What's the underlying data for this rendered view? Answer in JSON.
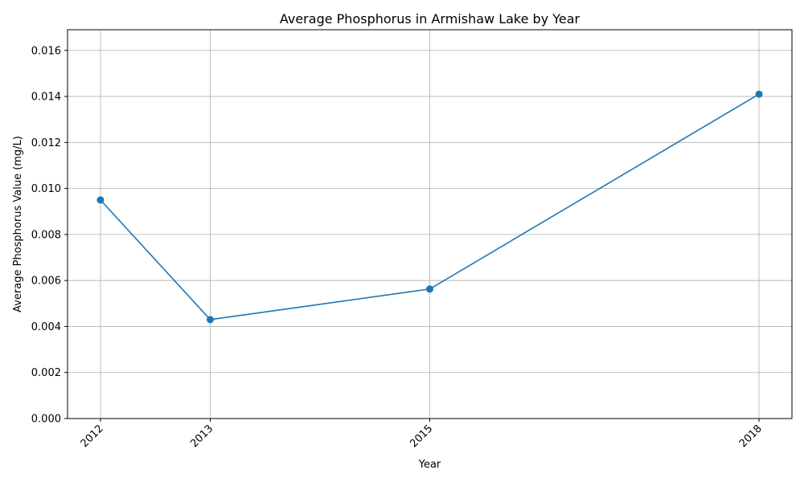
{
  "chart_data": {
    "type": "line",
    "title": "Average Phosphorus in Armishaw Lake by Year",
    "xlabel": "Year",
    "ylabel": "Average Phosphorus Value (mg/L)",
    "x": [
      2012,
      2013,
      2015,
      2018
    ],
    "x_tick_labels": [
      "2012",
      "2013",
      "2015",
      "2018"
    ],
    "series": [
      {
        "values": [
          0.0095,
          0.0043,
          0.00563,
          0.0141
        ],
        "color": "#1f77b4",
        "marker": "circle"
      }
    ],
    "xlim": [
      2011.7,
      2018.3
    ],
    "ylim": [
      0,
      0.0169
    ],
    "y_ticks": [
      0,
      0.002,
      0.004,
      0.006,
      0.008,
      0.01,
      0.012,
      0.014,
      0.016
    ],
    "y_tick_labels": [
      "0.000",
      "0.002",
      "0.004",
      "0.006",
      "0.008",
      "0.010",
      "0.012",
      "0.014",
      "0.016"
    ],
    "grid": true,
    "x_tick_rotation": 45,
    "colors": {
      "line": "#1f77b4",
      "grid": "#b0b0b0",
      "axes": "#000000",
      "background": "#ffffff"
    }
  }
}
